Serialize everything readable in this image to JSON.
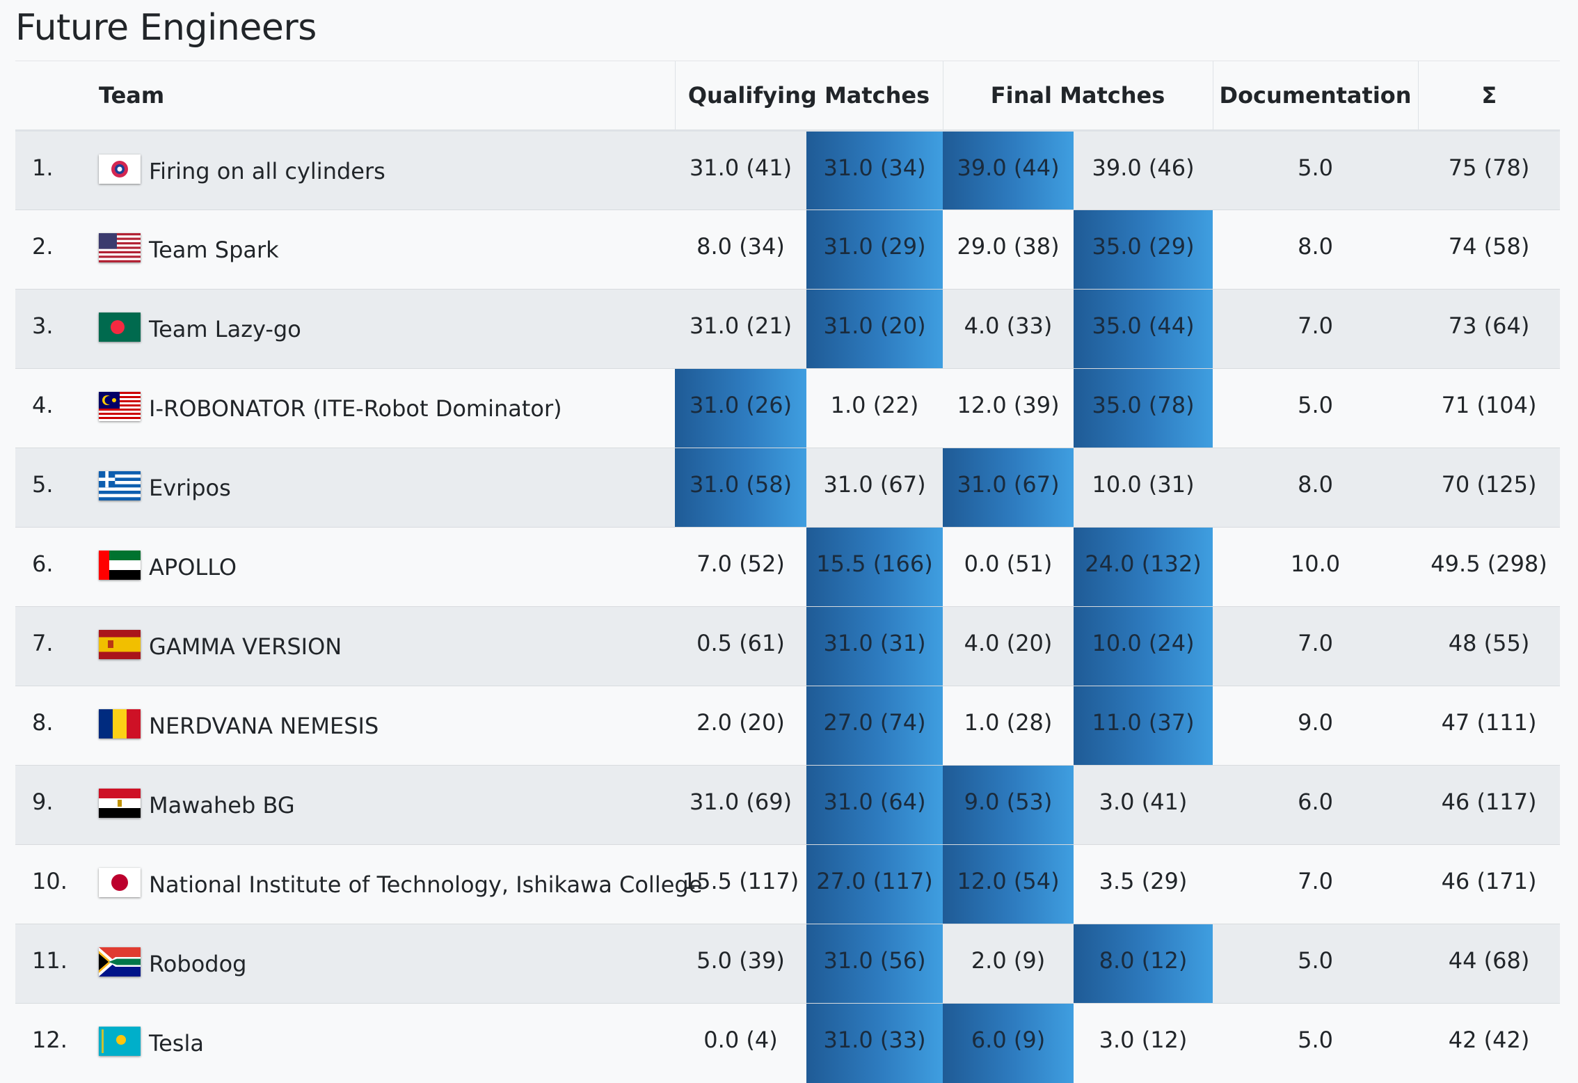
{
  "title": "Future Engineers",
  "columns": {
    "team": "Team",
    "qualifying": "Qualifying Matches",
    "final": "Final Matches",
    "documentation": "Documentation",
    "sum": "Σ"
  },
  "colors": {
    "highlight_dark": "#1f5b96",
    "highlight_light": "#3f9ee0",
    "row_striped": "#e9ecef",
    "row_plain": "#f8f9fa"
  },
  "rows": [
    {
      "rank": "1.",
      "team": "Firing on all cylinders",
      "flag": "chinese-taipei-flag-icon",
      "q1": "31.0 (41)",
      "q2": "31.0 (34)",
      "f1": "39.0 (44)",
      "f2": "39.0 (46)",
      "doc": "5.0",
      "sum": "75 (78)",
      "highlighted": [
        false,
        true,
        true,
        false
      ]
    },
    {
      "rank": "2.",
      "team": "Team Spark",
      "flag": "usa-flag-icon",
      "q1": "8.0 (34)",
      "q2": "31.0 (29)",
      "f1": "29.0 (38)",
      "f2": "35.0 (29)",
      "doc": "8.0",
      "sum": "74 (58)",
      "highlighted": [
        false,
        true,
        false,
        true
      ]
    },
    {
      "rank": "3.",
      "team": "Team Lazy-go",
      "flag": "bangladesh-flag-icon",
      "q1": "31.0 (21)",
      "q2": "31.0 (20)",
      "f1": "4.0 (33)",
      "f2": "35.0 (44)",
      "doc": "7.0",
      "sum": "73 (64)",
      "highlighted": [
        false,
        true,
        false,
        true
      ]
    },
    {
      "rank": "4.",
      "team": "I-ROBONATOR (ITE-Robot Dominator)",
      "flag": "malaysia-flag-icon",
      "q1": "31.0 (26)",
      "q2": "1.0 (22)",
      "f1": "12.0 (39)",
      "f2": "35.0 (78)",
      "doc": "5.0",
      "sum": "71 (104)",
      "highlighted": [
        true,
        false,
        false,
        true
      ]
    },
    {
      "rank": "5.",
      "team": "Evripos",
      "flag": "greece-flag-icon",
      "q1": "31.0 (58)",
      "q2": "31.0 (67)",
      "f1": "31.0 (67)",
      "f2": "10.0 (31)",
      "doc": "8.0",
      "sum": "70 (125)",
      "highlighted": [
        true,
        false,
        true,
        false
      ]
    },
    {
      "rank": "6.",
      "team": "APOLLO",
      "flag": "uae-flag-icon",
      "q1": "7.0 (52)",
      "q2": "15.5 (166)",
      "f1": "0.0 (51)",
      "f2": "24.0 (132)",
      "doc": "10.0",
      "sum": "49.5 (298)",
      "highlighted": [
        false,
        true,
        false,
        true
      ]
    },
    {
      "rank": "7.",
      "team": "GAMMA VERSION",
      "flag": "spain-flag-icon",
      "q1": "0.5 (61)",
      "q2": "31.0 (31)",
      "f1": "4.0 (20)",
      "f2": "10.0 (24)",
      "doc": "7.0",
      "sum": "48 (55)",
      "highlighted": [
        false,
        true,
        false,
        true
      ]
    },
    {
      "rank": "8.",
      "team": "NERDVANA NEMESIS",
      "flag": "romania-flag-icon",
      "q1": "2.0 (20)",
      "q2": "27.0 (74)",
      "f1": "1.0 (28)",
      "f2": "11.0 (37)",
      "doc": "9.0",
      "sum": "47 (111)",
      "highlighted": [
        false,
        true,
        false,
        true
      ]
    },
    {
      "rank": "9.",
      "team": "Mawaheb BG",
      "flag": "egypt-flag-icon",
      "q1": "31.0 (69)",
      "q2": "31.0 (64)",
      "f1": "9.0 (53)",
      "f2": "3.0 (41)",
      "doc": "6.0",
      "sum": "46 (117)",
      "highlighted": [
        false,
        true,
        true,
        false
      ]
    },
    {
      "rank": "10.",
      "team": "National Institute of Technology, Ishikawa College",
      "flag": "japan-flag-icon",
      "q1": "15.5 (117)",
      "q2": "27.0 (117)",
      "f1": "12.0 (54)",
      "f2": "3.5 (29)",
      "doc": "7.0",
      "sum": "46 (171)",
      "highlighted": [
        false,
        true,
        true,
        false
      ]
    },
    {
      "rank": "11.",
      "team": "Robodog",
      "flag": "south-africa-flag-icon",
      "q1": "5.0 (39)",
      "q2": "31.0 (56)",
      "f1": "2.0 (9)",
      "f2": "8.0 (12)",
      "doc": "5.0",
      "sum": "44 (68)",
      "highlighted": [
        false,
        true,
        false,
        true
      ]
    },
    {
      "rank": "12.",
      "team": "Tesla",
      "flag": "kazakhstan-flag-icon",
      "q1": "0.0 (4)",
      "q2": "31.0 (33)",
      "f1": "6.0 (9)",
      "f2": "3.0 (12)",
      "doc": "5.0",
      "sum": "42 (42)",
      "highlighted": [
        false,
        true,
        true,
        false
      ]
    }
  ]
}
